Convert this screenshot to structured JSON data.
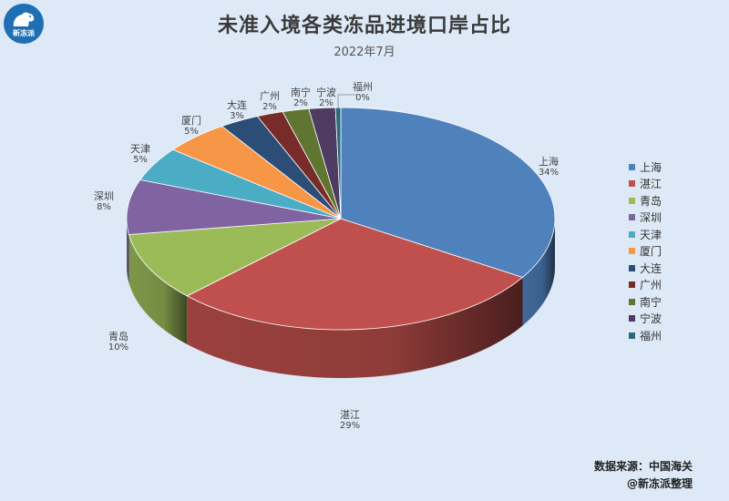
{
  "logo": {
    "text": "新冻派"
  },
  "chart_data": {
    "type": "pie",
    "title": "未准入境各类冻品进境口岸占比",
    "subtitle": "2022年7月",
    "categories": [
      "上海",
      "湛江",
      "青岛",
      "深圳",
      "天津",
      "厦门",
      "大连",
      "广州",
      "南宁",
      "宁波",
      "福州"
    ],
    "values": [
      34,
      29,
      10,
      8,
      5,
      5,
      3,
      2,
      2,
      2,
      0
    ],
    "percent_labels": [
      "34%",
      "29%",
      "10%",
      "8%",
      "5%",
      "5%",
      "3%",
      "2%",
      "2%",
      "2%",
      "0%"
    ],
    "colors": [
      "#4f81bd",
      "#c0504d",
      "#9bbb59",
      "#8064a2",
      "#4bacc6",
      "#f79646",
      "#2c4d75",
      "#772c2a",
      "#5f7530",
      "#4d3b62",
      "#276a7c"
    ],
    "legend_position": "right",
    "three_d": true
  },
  "source": {
    "line1": "数据来源：中国海关",
    "line2": "@新冻派整理"
  }
}
